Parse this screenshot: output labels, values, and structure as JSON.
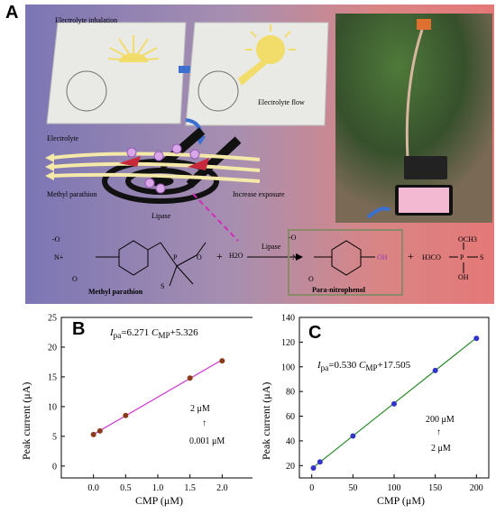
{
  "figure": {
    "panel_a": {
      "letter": "A",
      "labels": {
        "electrolyte_inhalation": "Electrolyte inhalation",
        "electrolyte_flow": "Electrolyte flow",
        "electrolyte": "Electrolyte",
        "methyl_parathion": "Methyl parathion",
        "lipase": "Lipase",
        "increase_exposure": "Increase exposure"
      },
      "reaction": {
        "plus1": "+",
        "h2o": "H2O",
        "enzyme": "Lipase",
        "plus2": "+",
        "reactant_name": "Methyl parathion",
        "product_name": "Para-nitrophenol",
        "atoms": {
          "o_minus": "-O",
          "n_plus": "N+",
          "o": "O",
          "s": "S",
          "p": "P",
          "oh": "OH",
          "och3": "OCH3",
          "h3co": "H3CO"
        }
      }
    },
    "panel_b": {
      "letter": "B"
    },
    "panel_c": {
      "letter": "C"
    }
  },
  "chart_data": [
    {
      "type": "scatter",
      "panel": "B",
      "xlabel": "CMP (μM)",
      "ylabel": "Peak current (μA)",
      "xlim": [
        -0.5,
        2.5
      ],
      "ylim": [
        -2,
        25
      ],
      "xticks": [
        "0.0",
        "0.5",
        "1.0",
        "1.5",
        "2.0"
      ],
      "yticks": [
        "0",
        "5",
        "10",
        "15",
        "20",
        "25"
      ],
      "x": [
        0,
        0.1,
        0.5,
        1.5,
        2.0
      ],
      "y": [
        5.3,
        5.9,
        8.5,
        14.8,
        17.7
      ],
      "fit": {
        "slope": 6.271,
        "intercept": 5.326,
        "color": "#cc33cc"
      },
      "marker_color": "#8b3a1a",
      "equation": {
        "i": "I",
        "sub": "pa",
        "mid": "=6.271 ",
        "c": "C",
        "csub": "MP",
        "rest": "+5.326"
      },
      "range_top": "2 μM",
      "range_bottom": "0.001 μM",
      "grid": false
    },
    {
      "type": "scatter",
      "panel": "C",
      "xlabel": "CMP (μM)",
      "ylabel": "Peak current (μA)",
      "xlim": [
        -15,
        215
      ],
      "ylim": [
        10,
        140
      ],
      "xticks": [
        "0",
        "50",
        "100",
        "150",
        "200"
      ],
      "yticks": [
        "20",
        "40",
        "60",
        "80",
        "100",
        "120",
        "140"
      ],
      "x": [
        2,
        10,
        50,
        100,
        150,
        200
      ],
      "y": [
        18,
        23,
        44,
        70,
        97,
        123
      ],
      "fit": {
        "slope": 0.53,
        "intercept": 17.505,
        "color": "#2e8b2e"
      },
      "marker_color": "#3333cc",
      "equation": {
        "i": "I",
        "sub": "pa",
        "mid": "=0.530 ",
        "c": "C",
        "csub": "MP",
        "rest": "+17.505"
      },
      "range_top": "200 μM",
      "range_bottom": "2 μM",
      "grid": false
    }
  ]
}
